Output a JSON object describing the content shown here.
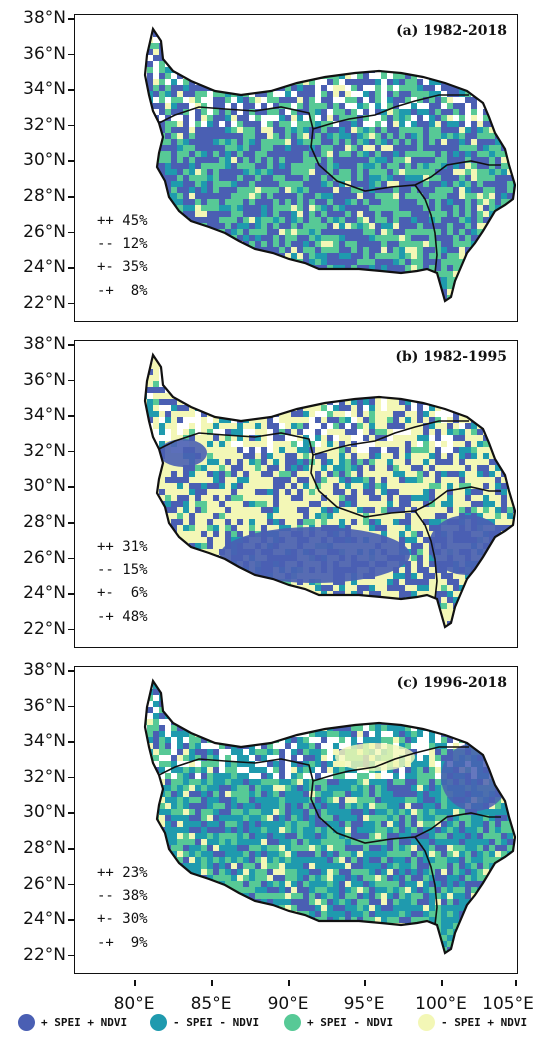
{
  "colors": {
    "pp": "#4a5fb3",
    "mm": "#1f9aae",
    "pm": "#57c996",
    "mp": "#f3f7b6",
    "border": "#111111"
  },
  "y_axis_labels": [
    "38°N",
    "36°N",
    "34°N",
    "32°N",
    "30°N",
    "28°N",
    "26°N",
    "24°N",
    "22°N"
  ],
  "x_axis_labels": [
    "80°E",
    "85°E",
    "90°E",
    "95°E",
    "100°E",
    "105°E"
  ],
  "panels": [
    {
      "title": "(a) 1982-2018",
      "dominant": "pp",
      "stats": [
        "++ 45%",
        "-- 12%",
        "+- 35%",
        "-+  8%"
      ],
      "shares": {
        "pp": 45,
        "mm": 12,
        "pm": 35,
        "mp": 8
      }
    },
    {
      "title": "(b) 1982-1995",
      "dominant": "mp",
      "stats": [
        "++ 31%",
        "-- 15%",
        "+-  6%",
        "-+ 48%"
      ],
      "shares": {
        "pp": 31,
        "mm": 15,
        "pm": 6,
        "mp": 48
      }
    },
    {
      "title": "(c) 1996-2018",
      "dominant": "mm",
      "stats": [
        "++ 23%",
        "-- 38%",
        "+- 30%",
        "-+  9%"
      ],
      "shares": {
        "pp": 23,
        "mm": 38,
        "pm": 30,
        "mp": 9
      }
    }
  ],
  "legend": [
    {
      "key": "pp",
      "label": "+ SPEI + NDVI"
    },
    {
      "key": "mm",
      "label": "- SPEI - NDVI"
    },
    {
      "key": "pm",
      "label": "+ SPEI - NDVI"
    },
    {
      "key": "mp",
      "label": "- SPEI + NDVI"
    }
  ]
}
